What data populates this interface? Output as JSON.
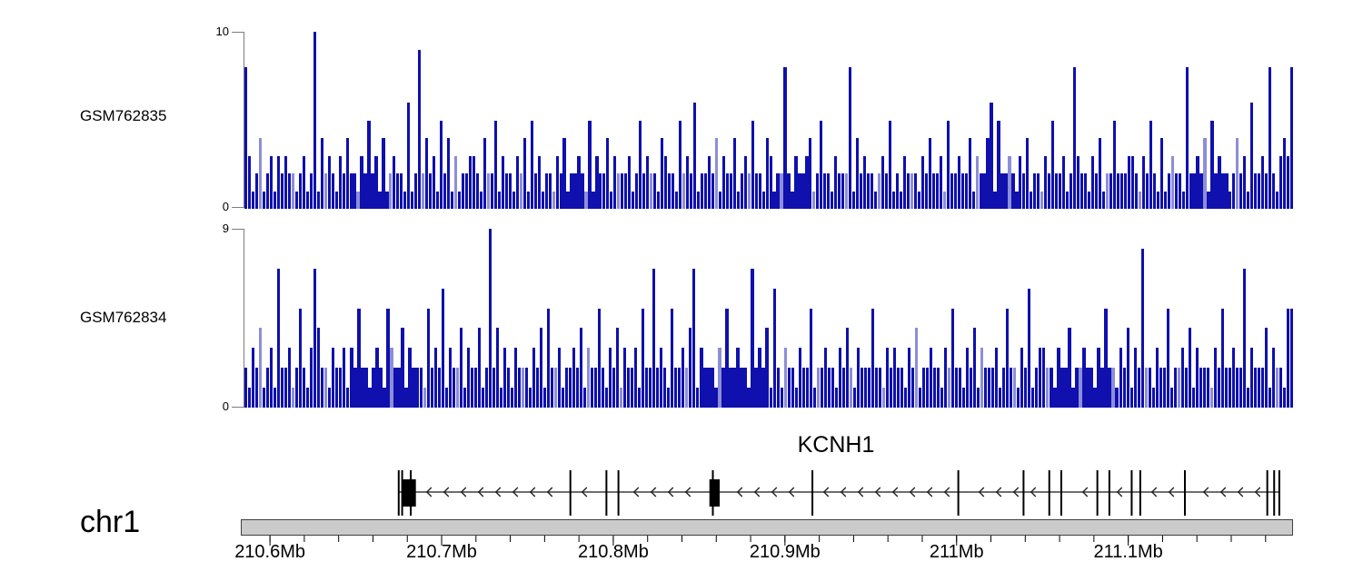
{
  "chart_data": {
    "type": "genome_coverage_tracks",
    "description": "Read-coverage histograms for two samples over a genomic window, with gene model and chromosome axis",
    "bars_encoding": "each character is one bar height in data units; digits 0-9, letter a = 10",
    "tracks": [
      {
        "label": "GSM762835",
        "ymax_label": "10",
        "ymin_label": "0",
        "ylim": [
          0,
          10
        ],
        "bars": "8312412313232212312a142321324221325231412322161292423152413122332142251322132415231221324122321513224132223125232214322152326122324132241232522143122821322341252213222814232212325121322213242231522322413224615223213241221325223128322132412252223321325214123221822324152322124231622328213438"
      },
      {
        "label": "GSM762834",
        "ymax_label": "9",
        "ymin_label": "0",
        "ylim": [
          0,
          9
        ],
        "bars": "213241231722312521374221322313252212321532241322215232613224132241292413213222132415223122324132252132413223152272321522324713222132522322172324162132213225122322132421322252213232213241223221325221324132223125221326123322132241223221325221324132822132251223241322213252232271322241322155"
      }
    ],
    "gene": {
      "name": "KCNH1",
      "chromosome": "chr1",
      "strand": "-",
      "arrow_direction": "left",
      "span_mb": [
        210.675,
        211.188
      ],
      "exon_marks_mb": [
        210.675,
        210.677,
        210.682,
        210.775,
        210.796,
        210.803,
        210.858,
        210.916,
        211.001,
        211.039,
        211.054,
        211.061,
        211.082,
        211.089,
        211.102,
        211.107,
        211.133,
        211.181,
        211.185,
        211.188
      ],
      "exon_boxes_mb": [
        [
          210.677,
          210.685
        ],
        [
          210.856,
          210.862
        ]
      ]
    },
    "axis": {
      "chrom": "chr1",
      "unit": "Mb",
      "range_mb": [
        210.583,
        211.196
      ],
      "minor_tick_step_mb": 0.02,
      "minor_tick_range_mb": [
        210.6,
        211.18
      ],
      "major_ticks": [
        {
          "mb": 210.6,
          "label": "210.6Mb"
        },
        {
          "mb": 210.7,
          "label": "210.7Mb"
        },
        {
          "mb": 210.8,
          "label": "210.8Mb"
        },
        {
          "mb": 210.9,
          "label": "210.9Mb"
        },
        {
          "mb": 211.0,
          "label": "211Mb"
        },
        {
          "mb": 211.1,
          "label": "211.1Mb"
        }
      ]
    },
    "colors": {
      "bar": "#0f10ad",
      "bar_light": "#8d8ed8",
      "axis_line": "#7d7d7d",
      "gene_line": "#6e6e6e",
      "exon": "#000000",
      "arrow": "#1a1a1a",
      "chrom_fill": "#cbcbcb",
      "chrom_border": "#3f3f3f",
      "text": "#000000"
    }
  }
}
